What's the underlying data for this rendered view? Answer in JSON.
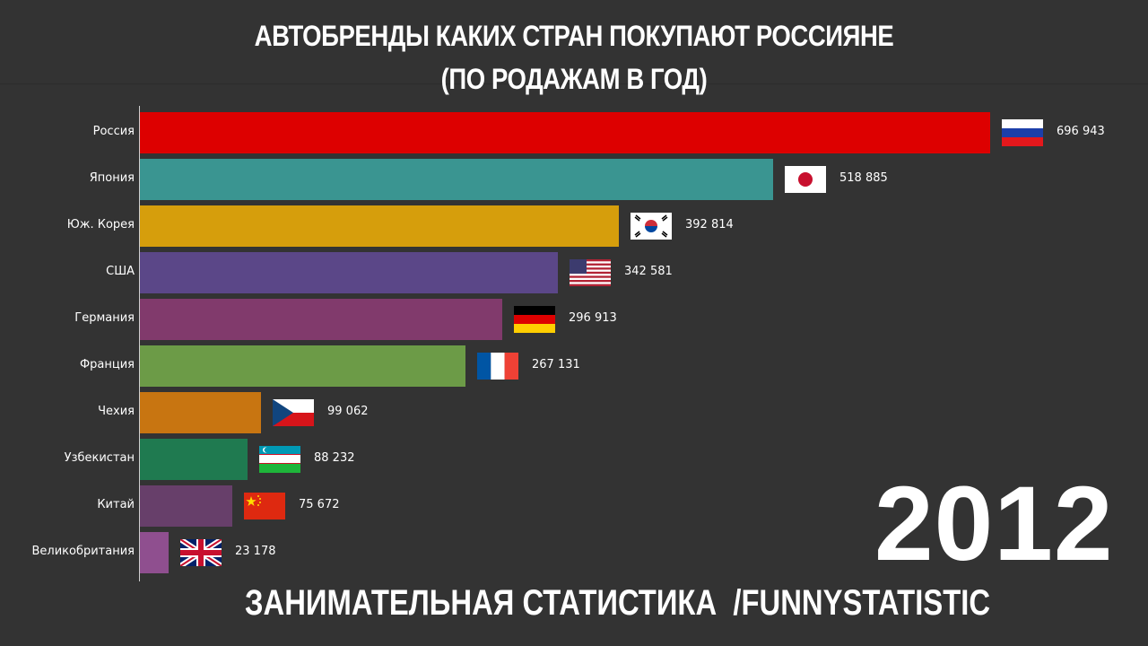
{
  "chart_data": {
    "type": "bar",
    "orientation": "horizontal",
    "title": "АВТОБРЕНДЫ КАКИХ СТРАН ПОКУПАЮТ РОССИЯНЕ",
    "subtitle": "(ПО РОДАЖАМ В ГОД)",
    "year": "2012",
    "xlim": [
      0,
      696943
    ],
    "categories": [
      "Россия",
      "Япония",
      "Юж. Корея",
      "США",
      "Германия",
      "Франция",
      "Чехия",
      "Узбекистан",
      "Китай",
      "Великобритания"
    ],
    "values": [
      696943,
      518885,
      392814,
      342581,
      296913,
      267131,
      99062,
      88232,
      75672,
      23178
    ],
    "value_labels": [
      "696 943",
      "518 885",
      "392 814",
      "342 581",
      "296 913",
      "267 131",
      "99 062",
      "88 232",
      "75 672",
      "23 178"
    ],
    "colors": [
      "#dd0000",
      "#3a9591",
      "#d69e0c",
      "#5b4788",
      "#813a6c",
      "#6c9b47",
      "#c87511",
      "#1f7a50",
      "#673f6a",
      "#8f4f8f"
    ],
    "flags": [
      "russia-flag-icon",
      "japan-flag-icon",
      "south-korea-flag-icon",
      "usa-flag-icon",
      "germany-flag-icon",
      "france-flag-icon",
      "czechia-flag-icon",
      "uzbekistan-flag-icon",
      "china-flag-icon",
      "uk-flag-icon"
    ],
    "grid": false,
    "legend": "none"
  },
  "footer": "ЗАНИМАТЕЛЬНАЯ СТАТИСТИКА  /FUNNYSTATISTIC"
}
